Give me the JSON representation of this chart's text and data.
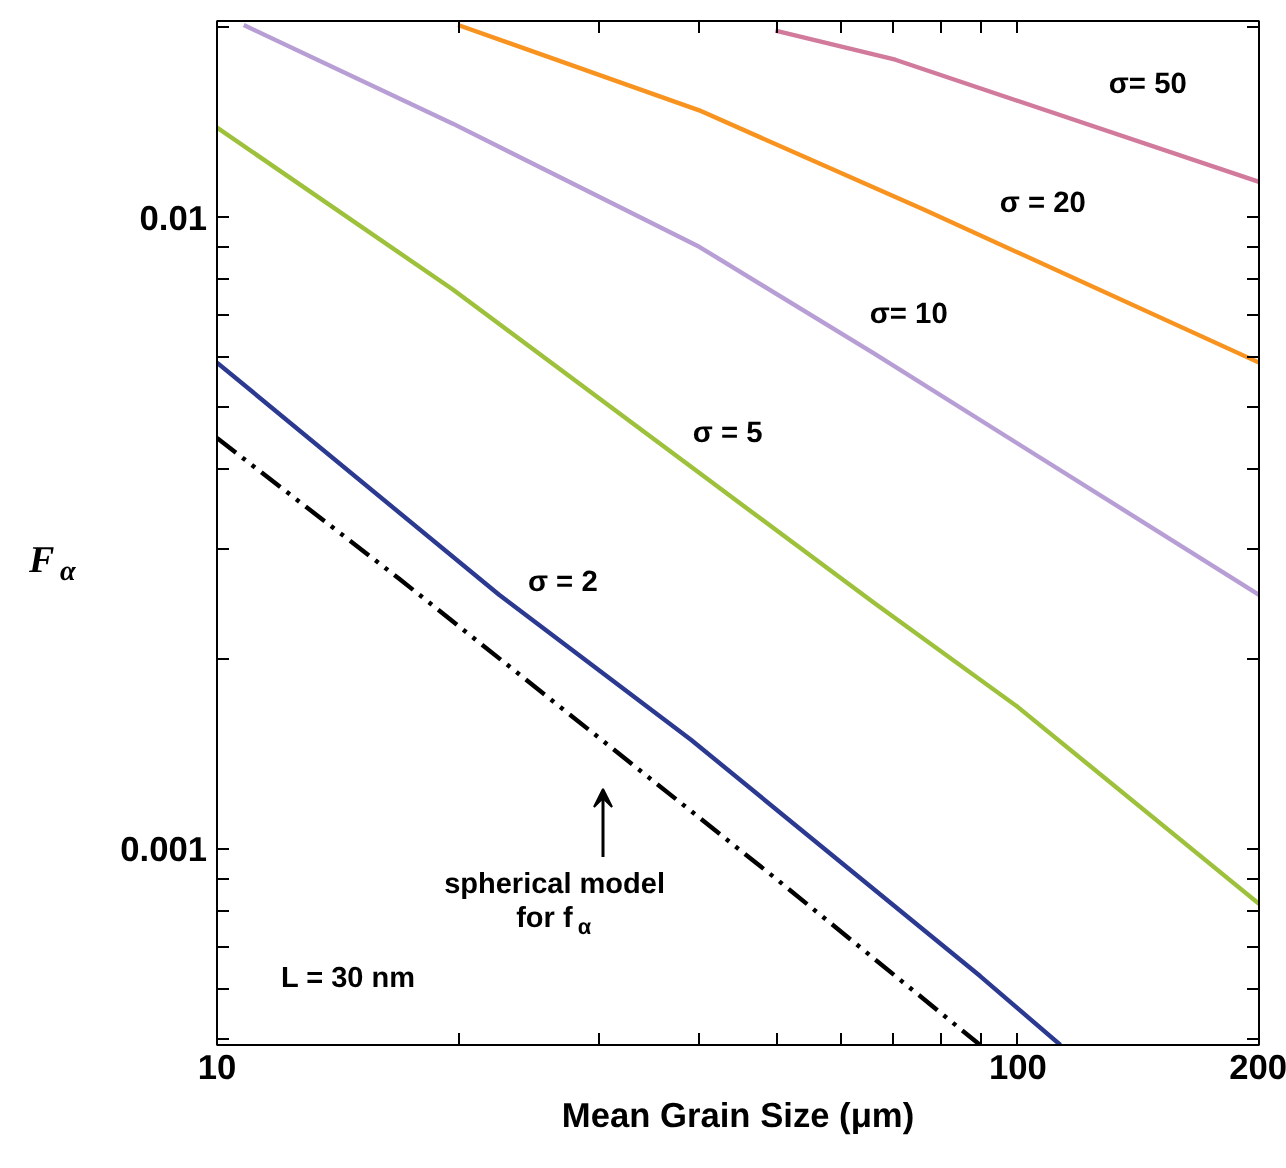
{
  "chart_data": {
    "type": "line",
    "xlabel": "Mean Grain Size (μm)",
    "ylabel": "F$_{α}$",
    "log": "xy",
    "grid": false,
    "marker": "none",
    "xlim": [
      10,
      200
    ],
    "ylim": [
      0.00049,
      0.0205
    ],
    "xticks": [
      10,
      {
        "value": 20,
        "label": null
      },
      {
        "value": 30,
        "label": null
      },
      {
        "value": 40,
        "label": null
      },
      {
        "value": 50,
        "label": null
      },
      {
        "value": 60,
        "label": null
      },
      {
        "value": 70,
        "label": null
      },
      {
        "value": 80,
        "label": null
      },
      {
        "value": 90,
        "label": null
      },
      100,
      200
    ],
    "yticks": [
      {
        "value": 0.0005,
        "label": null
      },
      {
        "value": 0.0006,
        "label": null
      },
      {
        "value": 0.0007,
        "label": null
      },
      {
        "value": 0.0008,
        "label": null
      },
      {
        "value": 0.0009,
        "label": null
      },
      0.001,
      {
        "value": 0.002,
        "label": null
      },
      {
        "value": 0.003,
        "label": null
      },
      {
        "value": 0.004,
        "label": null
      },
      {
        "value": 0.005,
        "label": null
      },
      {
        "value": 0.006,
        "label": null
      },
      {
        "value": 0.007,
        "label": null
      },
      {
        "value": 0.008,
        "label": null
      },
      {
        "value": 0.009,
        "label": null
      },
      0.01,
      {
        "value": 0.02,
        "label": null
      }
    ],
    "series": [
      {
        "color": "#000000",
        "line_style": "dashed",
        "x": [
          10,
          16.9,
          49.8,
          89.7
        ],
        "values": [
          0.00448,
          0.00268,
          0.0009,
          0.00049
        ]
      },
      {
        "name": "σ = 2",
        "color": "#2b3990",
        "line_style": "solid",
        "x": [
          10,
          22.5,
          39.1,
          89.7,
          113
        ],
        "values": [
          0.0059,
          0.00253,
          0.00149,
          0.00063,
          0.00049
        ]
      },
      {
        "name": "σ = 5",
        "color": "#9dc13b",
        "line_style": "solid",
        "x": [
          10,
          19.7,
          40.5,
          66.3,
          100,
          200
        ],
        "values": [
          0.0139,
          0.0077,
          0.0039,
          0.00245,
          0.00168,
          0.00082
        ]
      },
      {
        "name": "σ= 10",
        "color": "#b79fd6",
        "line_style": "solid",
        "x": [
          10.8,
          19.7,
          40,
          66.1,
          200
        ],
        "values": [
          0.0202,
          0.0141,
          0.009,
          0.0061,
          0.00253
        ]
      },
      {
        "name": "σ = 20",
        "color": "#f7931e",
        "line_style": "solid",
        "x": [
          20,
          40,
          76.4,
          200
        ],
        "values": [
          0.0202,
          0.0148,
          0.0103,
          0.0059
        ]
      },
      {
        "name": "σ= 50",
        "color": "#d17a9c",
        "line_style": "solid",
        "x": [
          49.8,
          70.3,
          200
        ],
        "values": [
          0.0198,
          0.0178,
          0.0114
        ]
      }
    ],
    "annotations": [
      "spherical model\nfor f$_{α}$",
      "L = 30 nm"
    ]
  }
}
